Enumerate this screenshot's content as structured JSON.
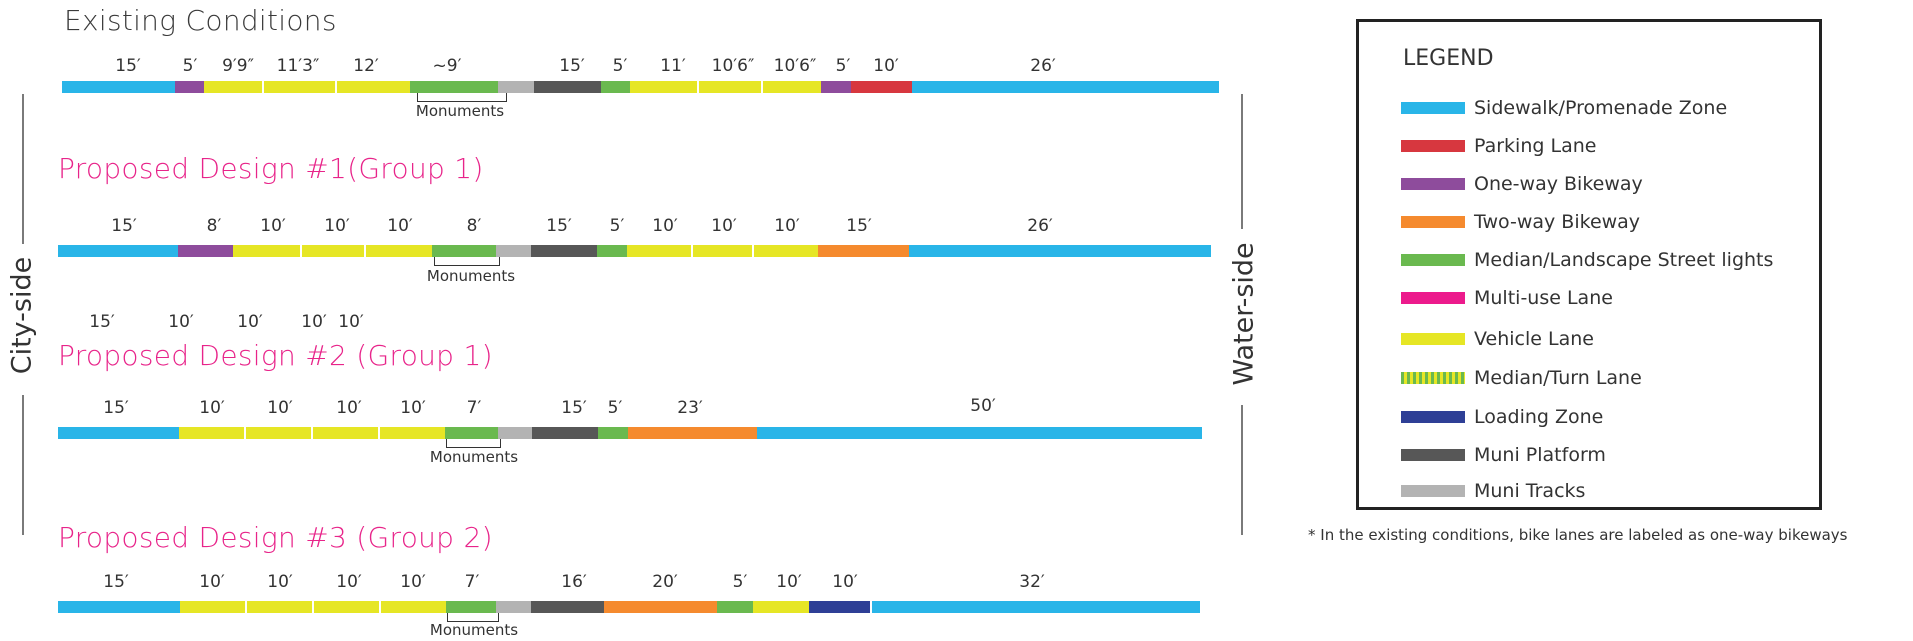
{
  "colors": {
    "sidewalk": "#29b5e8",
    "parking": "#d7373f",
    "oneway": "#8e4c9c",
    "twoway": "#f58a2e",
    "median": "#6ab94f",
    "multiuse": "#ec1a8c",
    "vehicle": "#e6e625",
    "loading": "#2e3f96",
    "platform": "#575757",
    "tracks": "#b3b3b3",
    "title_pink": "#e8248a"
  },
  "side_labels": {
    "city": "City-side",
    "water": "Water-side"
  },
  "existing": {
    "title": "Existing Conditions",
    "dims": [
      "15′",
      "5′",
      "9′9″",
      "11′3″",
      "12′",
      "~9′",
      "15′",
      "5′",
      "11′",
      "10′6″",
      "10′6″",
      "5′",
      "10′",
      "26′"
    ],
    "monuments": "Monuments"
  },
  "design1": {
    "title": "Proposed Design #1(Group 1)",
    "dims": [
      "15′",
      "8′",
      "10′",
      "10′",
      "10′",
      "8′",
      "15′",
      "5′",
      "10′",
      "10′",
      "10′",
      "15′",
      "26′"
    ],
    "monuments": "Monuments"
  },
  "design2": {
    "title": "Proposed Design #2 (Group 1)",
    "stray_dims": [
      "15′",
      "10′",
      "10′",
      "10′",
      "10′"
    ],
    "dims": [
      "15′",
      "10′",
      "10′",
      "10′",
      "10′",
      "7′",
      "15′",
      "5′",
      "23′",
      "50′"
    ],
    "monuments": "Monuments"
  },
  "design3": {
    "title": "Proposed Design #3 (Group 2)",
    "dims": [
      "15′",
      "10′",
      "10′",
      "10′",
      "10′",
      "7′",
      "16′",
      "20′",
      "5′",
      "10′",
      "10′",
      "32′"
    ],
    "monuments": "Monuments"
  },
  "legend": {
    "title": "LEGEND",
    "items": [
      {
        "label": "Sidewalk/Promenade Zone",
        "icon": "swatch-sidewalk"
      },
      {
        "label": "Parking Lane",
        "icon": "swatch-parking"
      },
      {
        "label": "One-way Bikeway",
        "icon": "swatch-oneway"
      },
      {
        "label": "Two-way Bikeway",
        "icon": "swatch-twoway"
      },
      {
        "label": "Median/Landscape Street lights",
        "icon": "swatch-median"
      },
      {
        "label": "Multi-use Lane",
        "icon": "swatch-multiuse"
      },
      {
        "label": "Vehicle Lane",
        "icon": "swatch-vehicle"
      },
      {
        "label": "Median/Turn Lane",
        "icon": "swatch-turnlane"
      },
      {
        "label": "Loading Zone",
        "icon": "swatch-loading"
      },
      {
        "label": "Muni Platform",
        "icon": "swatch-platform"
      },
      {
        "label": "Muni Tracks",
        "icon": "swatch-tracks"
      }
    ]
  },
  "footnote": "* In the existing conditions, bike lanes are labeled as one-way bikeways"
}
